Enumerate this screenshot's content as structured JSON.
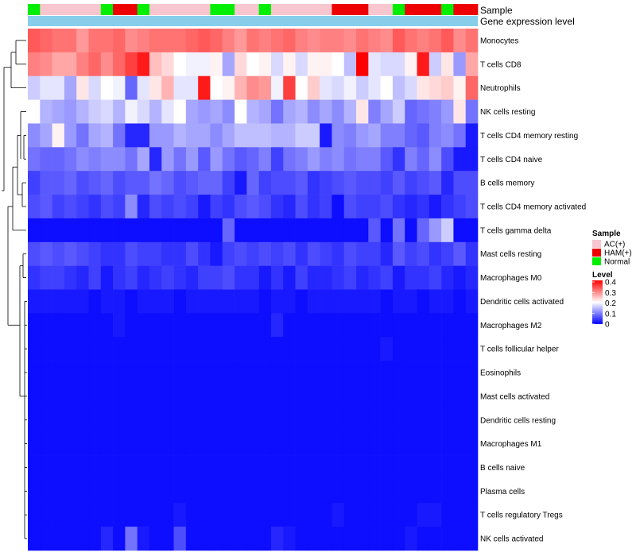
{
  "chart_data": {
    "type": "heatmap",
    "title": "",
    "annotations": {
      "sample_label": "Sample",
      "expression_label": "Gene expression level"
    },
    "sample_groups": [
      "Normal",
      "AC(+)",
      "AC(+)",
      "AC(+)",
      "AC(+)",
      "AC(+)",
      "Normal",
      "HAM(+)",
      "HAM(+)",
      "Normal",
      "AC(+)",
      "AC(+)",
      "AC(+)",
      "AC(+)",
      "AC(+)",
      "Normal",
      "Normal",
      "AC(+)",
      "AC(+)",
      "Normal",
      "AC(+)",
      "AC(+)",
      "AC(+)",
      "AC(+)",
      "AC(+)",
      "HAM(+)",
      "HAM(+)",
      "HAM(+)",
      "AC(+)",
      "AC(+)",
      "Normal",
      "HAM(+)",
      "HAM(+)",
      "HAM(+)",
      "Normal",
      "HAM(+)",
      "HAM(+)"
    ],
    "rows": [
      "Monocytes",
      "T cells CD8",
      "Neutrophils",
      "NK cells resting",
      "T cells CD4 memory resting",
      "T cells CD4 naive",
      "B cells memory",
      "T cells CD4 memory activated",
      "T cells gamma delta",
      "Mast cells resting",
      "Macrophages M0",
      "Dendritic cells activated",
      "Macrophages M2",
      "T cells follicular helper",
      "Eosinophils",
      "Mast cells activated",
      "Dendritic cells resting",
      "Macrophages M1",
      "B cells naive",
      "Plasma cells",
      "T cells regulatory  Tregs",
      "NK cells activated"
    ],
    "values": [
      [
        0.33,
        0.32,
        0.31,
        0.31,
        0.28,
        0.31,
        0.31,
        0.32,
        0.29,
        0.3,
        0.31,
        0.31,
        0.31,
        0.32,
        0.33,
        0.32,
        0.3,
        0.28,
        0.31,
        0.3,
        0.31,
        0.32,
        0.3,
        0.29,
        0.3,
        0.3,
        0.29,
        0.31,
        0.3,
        0.29,
        0.33,
        0.31,
        0.3,
        0.31,
        0.33,
        0.29,
        0.31
      ],
      [
        0.3,
        0.29,
        0.27,
        0.27,
        0.3,
        0.32,
        0.29,
        0.32,
        0.35,
        0.38,
        0.25,
        0.23,
        0.2,
        0.19,
        0.19,
        0.21,
        0.13,
        0.23,
        0.2,
        0.21,
        0.17,
        0.21,
        0.17,
        0.21,
        0.21,
        0.2,
        0.15,
        0.4,
        0.18,
        0.17,
        0.17,
        0.21,
        0.38,
        0.16,
        0.22,
        0.12,
        0.27
      ],
      [
        0.16,
        0.18,
        0.18,
        0.13,
        0.22,
        0.17,
        0.2,
        0.19,
        0.08,
        0.18,
        0.22,
        0.26,
        0.18,
        0.18,
        0.38,
        0.2,
        0.21,
        0.26,
        0.29,
        0.28,
        0.19,
        0.35,
        0.2,
        0.24,
        0.18,
        0.17,
        0.19,
        0.16,
        0.18,
        0.2,
        0.15,
        0.17,
        0.22,
        0.23,
        0.24,
        0.21,
        0.32
      ],
      [
        0.2,
        0.14,
        0.13,
        0.12,
        0.14,
        0.16,
        0.17,
        0.14,
        0.19,
        0.17,
        0.14,
        0.18,
        0.2,
        0.13,
        0.12,
        0.13,
        0.11,
        0.2,
        0.14,
        0.13,
        0.09,
        0.13,
        0.14,
        0.11,
        0.13,
        0.11,
        0.14,
        0.22,
        0.1,
        0.13,
        0.16,
        0.08,
        0.09,
        0.1,
        0.12,
        0.22,
        0.09
      ],
      [
        0.11,
        0.13,
        0.21,
        0.12,
        0.09,
        0.13,
        0.14,
        0.09,
        0.03,
        0.03,
        0.12,
        0.12,
        0.14,
        0.13,
        0.13,
        0.11,
        0.13,
        0.15,
        0.15,
        0.15,
        0.14,
        0.14,
        0.16,
        0.16,
        0.02,
        0.11,
        0.1,
        0.12,
        0.13,
        0.1,
        0.1,
        0.08,
        0.07,
        0.1,
        0.11,
        0.09,
        0.02
      ],
      [
        0.09,
        0.08,
        0.08,
        0.09,
        0.11,
        0.1,
        0.11,
        0.11,
        0.09,
        0.13,
        0.03,
        0.12,
        0.09,
        0.12,
        0.07,
        0.12,
        0.09,
        0.07,
        0.08,
        0.1,
        0.05,
        0.09,
        0.1,
        0.12,
        0.1,
        0.11,
        0.09,
        0.1,
        0.1,
        0.07,
        0.04,
        0.1,
        0.08,
        0.11,
        0.06,
        0.02,
        0.02
      ],
      [
        0.05,
        0.07,
        0.07,
        0.08,
        0.06,
        0.07,
        0.08,
        0.06,
        0.07,
        0.07,
        0.09,
        0.08,
        0.06,
        0.07,
        0.08,
        0.08,
        0.05,
        0.02,
        0.08,
        0.05,
        0.06,
        0.06,
        0.07,
        0.04,
        0.05,
        0.06,
        0.07,
        0.06,
        0.06,
        0.05,
        0.07,
        0.05,
        0.06,
        0.07,
        0.03,
        0.06,
        0.06
      ],
      [
        0.06,
        0.07,
        0.05,
        0.06,
        0.05,
        0.04,
        0.06,
        0.05,
        0.11,
        0.03,
        0.06,
        0.05,
        0.06,
        0.05,
        0.02,
        0.05,
        0.04,
        0.06,
        0.07,
        0.06,
        0.04,
        0.03,
        0.06,
        0.04,
        0.05,
        0.01,
        0.06,
        0.05,
        0.05,
        0.06,
        0.04,
        0.03,
        0.04,
        0.02,
        0.04,
        0.05,
        0.06
      ],
      [
        0.01,
        0.01,
        0.01,
        0.01,
        0.01,
        0.01,
        0.01,
        0.01,
        0.01,
        0.01,
        0.01,
        0.01,
        0.01,
        0.01,
        0.01,
        0.01,
        0.08,
        0.01,
        0.01,
        0.01,
        0.01,
        0.01,
        0.01,
        0.01,
        0.01,
        0.01,
        0.01,
        0.01,
        0.07,
        0.01,
        0.09,
        0.01,
        0.08,
        0.12,
        0.16,
        0.01,
        0.01
      ],
      [
        0.06,
        0.07,
        0.06,
        0.07,
        0.06,
        0.05,
        0.04,
        0.04,
        0.06,
        0.05,
        0.05,
        0.04,
        0.04,
        0.06,
        0.04,
        0.02,
        0.05,
        0.06,
        0.05,
        0.06,
        0.05,
        0.06,
        0.04,
        0.06,
        0.05,
        0.04,
        0.06,
        0.05,
        0.05,
        0.03,
        0.07,
        0.05,
        0.06,
        0.04,
        0.05,
        0.07,
        0.04
      ],
      [
        0.04,
        0.05,
        0.05,
        0.04,
        0.03,
        0.05,
        0.02,
        0.04,
        0.05,
        0.03,
        0.04,
        0.05,
        0.04,
        0.03,
        0.05,
        0.05,
        0.06,
        0.04,
        0.04,
        0.02,
        0.04,
        0.02,
        0.05,
        0.03,
        0.03,
        0.04,
        0.05,
        0.03,
        0.04,
        0.05,
        0.02,
        0.04,
        0.04,
        0.05,
        0.03,
        0.02,
        0.03
      ],
      [
        0.02,
        0.02,
        0.02,
        0.02,
        0.02,
        0.01,
        0.02,
        0.02,
        0.01,
        0.02,
        0.02,
        0.02,
        0.01,
        0.02,
        0.02,
        0.02,
        0.02,
        0.02,
        0.02,
        0.01,
        0.02,
        0.02,
        0.01,
        0.02,
        0.02,
        0.02,
        0.02,
        0.02,
        0.02,
        0.01,
        0.02,
        0.02,
        0.01,
        0.02,
        0.02,
        0.01,
        0.02
      ],
      [
        0.01,
        0.01,
        0.01,
        0.01,
        0.01,
        0.01,
        0.01,
        0.02,
        0.01,
        0.01,
        0.01,
        0.01,
        0.01,
        0.01,
        0.01,
        0.01,
        0.01,
        0.01,
        0.01,
        0.01,
        0.03,
        0.01,
        0.01,
        0.01,
        0.01,
        0.01,
        0.01,
        0.01,
        0.01,
        0.01,
        0.01,
        0.01,
        0.01,
        0.01,
        0.01,
        0.01,
        0.01
      ],
      [
        0.01,
        0.01,
        0.01,
        0.01,
        0.01,
        0.01,
        0.01,
        0.01,
        0.01,
        0.01,
        0.01,
        0.01,
        0.01,
        0.01,
        0.01,
        0.01,
        0.01,
        0.01,
        0.01,
        0.01,
        0.01,
        0.01,
        0.01,
        0.01,
        0.01,
        0.01,
        0.01,
        0.01,
        0.01,
        0.02,
        0.01,
        0.01,
        0.01,
        0.01,
        0.01,
        0.01,
        0.01
      ],
      [
        0.01,
        0.01,
        0.01,
        0.01,
        0.01,
        0.01,
        0.01,
        0.01,
        0.01,
        0.01,
        0.01,
        0.01,
        0.01,
        0.01,
        0.01,
        0.01,
        0.01,
        0.01,
        0.01,
        0.01,
        0.01,
        0.01,
        0.01,
        0.01,
        0.01,
        0.01,
        0.01,
        0.01,
        0.01,
        0.01,
        0.01,
        0.01,
        0.01,
        0.01,
        0.01,
        0.01,
        0.01
      ],
      [
        0.01,
        0.01,
        0.01,
        0.01,
        0.01,
        0.01,
        0.01,
        0.01,
        0.01,
        0.01,
        0.01,
        0.01,
        0.01,
        0.01,
        0.01,
        0.01,
        0.01,
        0.01,
        0.01,
        0.01,
        0.01,
        0.01,
        0.01,
        0.01,
        0.01,
        0.01,
        0.01,
        0.01,
        0.01,
        0.01,
        0.01,
        0.01,
        0.01,
        0.01,
        0.01,
        0.01,
        0.01
      ],
      [
        0.01,
        0.01,
        0.01,
        0.01,
        0.01,
        0.01,
        0.01,
        0.01,
        0.01,
        0.01,
        0.01,
        0.01,
        0.01,
        0.01,
        0.01,
        0.01,
        0.01,
        0.01,
        0.01,
        0.01,
        0.01,
        0.01,
        0.01,
        0.01,
        0.01,
        0.01,
        0.01,
        0.01,
        0.01,
        0.01,
        0.01,
        0.01,
        0.01,
        0.01,
        0.01,
        0.01,
        0.01
      ],
      [
        0.01,
        0.01,
        0.01,
        0.01,
        0.01,
        0.01,
        0.01,
        0.01,
        0.01,
        0.01,
        0.01,
        0.01,
        0.01,
        0.01,
        0.01,
        0.01,
        0.01,
        0.01,
        0.01,
        0.01,
        0.01,
        0.01,
        0.01,
        0.01,
        0.01,
        0.01,
        0.01,
        0.01,
        0.01,
        0.01,
        0.01,
        0.01,
        0.01,
        0.01,
        0.01,
        0.01,
        0.01
      ],
      [
        0.01,
        0.01,
        0.01,
        0.01,
        0.01,
        0.01,
        0.01,
        0.01,
        0.01,
        0.01,
        0.01,
        0.01,
        0.01,
        0.01,
        0.01,
        0.01,
        0.01,
        0.01,
        0.01,
        0.01,
        0.01,
        0.01,
        0.01,
        0.01,
        0.01,
        0.01,
        0.01,
        0.01,
        0.01,
        0.01,
        0.01,
        0.01,
        0.01,
        0.01,
        0.01,
        0.01,
        0.01
      ],
      [
        0.01,
        0.01,
        0.01,
        0.01,
        0.01,
        0.01,
        0.01,
        0.01,
        0.01,
        0.01,
        0.01,
        0.01,
        0.01,
        0.01,
        0.01,
        0.01,
        0.01,
        0.01,
        0.01,
        0.01,
        0.01,
        0.01,
        0.01,
        0.01,
        0.01,
        0.01,
        0.01,
        0.01,
        0.01,
        0.01,
        0.01,
        0.01,
        0.01,
        0.01,
        0.01,
        0.01,
        0.01
      ],
      [
        0.01,
        0.01,
        0.01,
        0.01,
        0.01,
        0.01,
        0.01,
        0.01,
        0.01,
        0.01,
        0.01,
        0.01,
        0.02,
        0.01,
        0.01,
        0.01,
        0.01,
        0.01,
        0.01,
        0.01,
        0.01,
        0.01,
        0.01,
        0.01,
        0.01,
        0.02,
        0.01,
        0.01,
        0.01,
        0.01,
        0.01,
        0.01,
        0.02,
        0.02,
        0.01,
        0.01,
        0.01
      ],
      [
        0.01,
        0.01,
        0.01,
        0.01,
        0.01,
        0.01,
        0.03,
        0.01,
        0.09,
        0.02,
        0.01,
        0.01,
        0.06,
        0.01,
        0.01,
        0.01,
        0.01,
        0.01,
        0.01,
        0.01,
        0.03,
        0.02,
        0.01,
        0.01,
        0.01,
        0.01,
        0.01,
        0.01,
        0.01,
        0.01,
        0.01,
        0.02,
        0.01,
        0.01,
        0.01,
        0.01,
        0.01
      ]
    ],
    "legend": {
      "sample_title": "Sample",
      "groups": [
        {
          "name": "AC(+)",
          "color": "#f7c6ce"
        },
        {
          "name": "HAM(+)",
          "color": "#ee0000"
        },
        {
          "name": "Normal",
          "color": "#00ee00"
        }
      ],
      "level_title": "Level",
      "level_ticks": [
        "0.4",
        "0.3",
        "0.2",
        "0.1",
        "0"
      ],
      "level_range": [
        0,
        0.4
      ]
    },
    "colors": {
      "low": "#0000ff",
      "mid": "#ffffff",
      "high": "#ff0000",
      "expression_bar": "#87ceeb"
    }
  }
}
